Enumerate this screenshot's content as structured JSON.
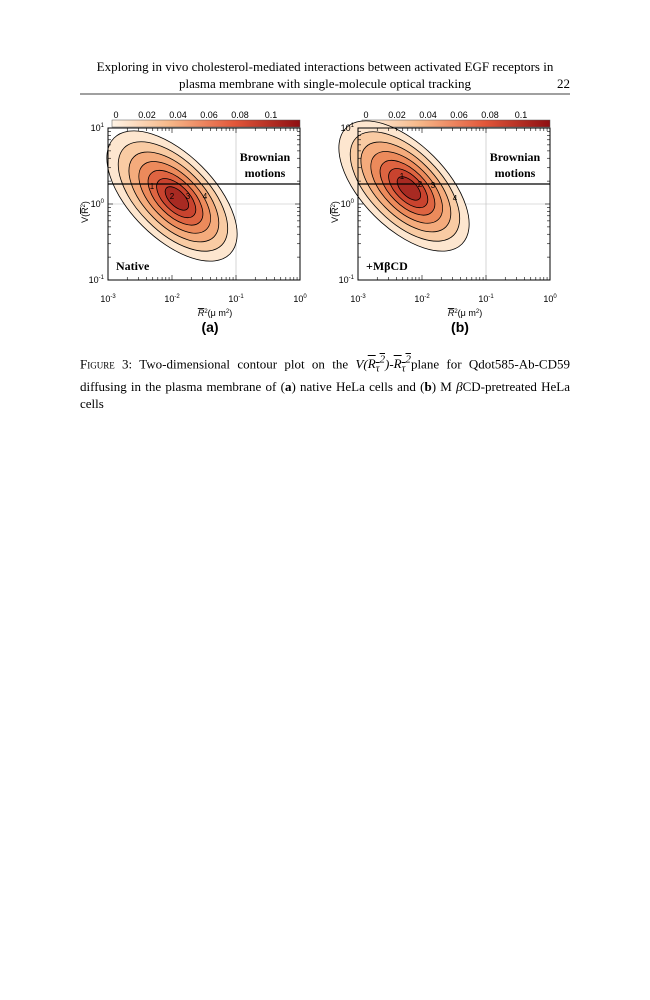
{
  "header": {
    "line1": "Exploring in vivo cholesterol-mediated interactions between activated EGF receptors in",
    "line2": "plasma membrane with single-molecule optical tracking",
    "page_number": "22"
  },
  "figure": {
    "colorbar_ticks": [
      "0",
      "0.02",
      "0.04",
      "0.06",
      "0.08",
      "0.1"
    ],
    "x_ticks": [
      {
        "base": "10",
        "exp": "-3"
      },
      {
        "base": "10",
        "exp": "-2"
      },
      {
        "base": "10",
        "exp": "-1"
      },
      {
        "base": "10",
        "exp": "0"
      }
    ],
    "y_ticks": [
      {
        "base": "10",
        "exp": "-1"
      },
      {
        "base": "10",
        "exp": "0"
      },
      {
        "base": "10",
        "exp": "1"
      }
    ],
    "x_label": {
      "sym": "R",
      "exp": "2",
      "unit": "(μ m",
      "unit_exp": "2",
      "close": ")"
    },
    "y_label": {
      "open": "V(",
      "sym": "R",
      "exp": "2",
      "close": ")"
    },
    "region_label": [
      "Brownian",
      "motions"
    ],
    "panels": [
      {
        "label": "(a)",
        "condition": "Native",
        "contour_labels": [
          "1",
          "2",
          "3",
          "4"
        ]
      },
      {
        "label": "(b)",
        "condition": "+MβCD",
        "contour_labels": [
          "1",
          "2",
          "3",
          "4"
        ]
      }
    ]
  },
  "caption": {
    "label": "Figure 3:",
    "text1": " Two-dimensional contour plot on the ",
    "math": {
      "v": "V(",
      "r1": "R",
      "sub1": "τ",
      "sup1": "2",
      "mid": ")-",
      "r2": "R",
      "sub2": "τ",
      "sup2": "2"
    },
    "text2": "plane for Qdot585-Ab-CD59 diffusing in the plasma membrane of (",
    "a": "a",
    "text3": ") native HeLa cells and (",
    "b": "b",
    "text4": ") M ",
    "beta": "β",
    "text5": "CD-pretreated HeLa cells"
  }
}
